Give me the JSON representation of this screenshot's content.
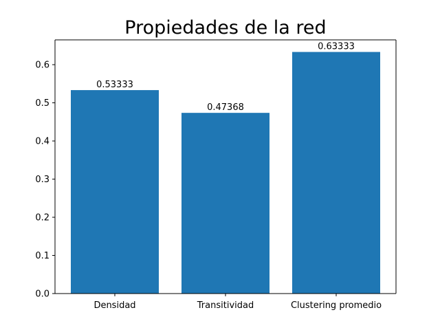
{
  "chart_data": {
    "type": "bar",
    "title": "Propiedades de la red",
    "xlabel": "",
    "ylabel": "",
    "categories": [
      "Densidad",
      "Transitividad",
      "Clustering promedio"
    ],
    "values": [
      0.53333,
      0.47368,
      0.63333
    ],
    "value_labels": [
      "0.53333",
      "0.47368",
      "0.63333"
    ],
    "ylim": [
      0,
      0.665
    ],
    "yticks": [
      0.0,
      0.1,
      0.2,
      0.3,
      0.4,
      0.5,
      0.6
    ],
    "ytick_labels": [
      "0.0",
      "0.1",
      "0.2",
      "0.3",
      "0.4",
      "0.5",
      "0.6"
    ],
    "grid": false,
    "bar_color": "#1f77b4"
  }
}
